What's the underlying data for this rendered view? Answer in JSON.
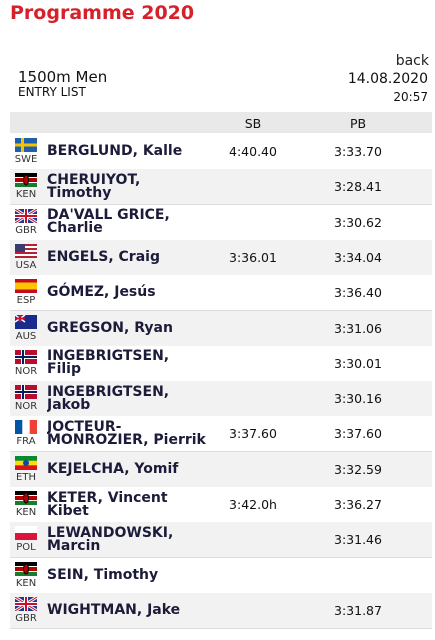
{
  "header": {
    "title": "Programme 2020",
    "back": "back",
    "event": "1500m Men",
    "subtitle": "ENTRY LIST",
    "date": "14.08.2020",
    "time": "20:57"
  },
  "table": {
    "columns": [
      "SB",
      "PB"
    ],
    "rows": [
      {
        "country": "SWE",
        "name": "BERGLUND, Kalle",
        "sb": "4:40.40",
        "pb": "3:33.70"
      },
      {
        "country": "KEN",
        "name": "CHERUIYOT, Timothy",
        "sb": null,
        "pb": "3:28.41"
      },
      {
        "country": "GBR",
        "name": "DA'VALL GRICE, Charlie",
        "sb": null,
        "pb": "3:30.62"
      },
      {
        "country": "USA",
        "name": "ENGELS, Craig",
        "sb": "3:36.01",
        "pb": "3:34.04"
      },
      {
        "country": "ESP",
        "name": "GÓMEZ, Jesús",
        "sb": null,
        "pb": "3:36.40"
      },
      {
        "country": "AUS",
        "name": "GREGSON, Ryan",
        "sb": null,
        "pb": "3:31.06"
      },
      {
        "country": "NOR",
        "name": "INGEBRIGTSEN, Filip",
        "sb": null,
        "pb": "3:30.01"
      },
      {
        "country": "NOR",
        "name": "INGEBRIGTSEN, Jakob",
        "sb": null,
        "pb": "3:30.16"
      },
      {
        "country": "FRA",
        "name": "JOCTEUR-MONROZIER, Pierrik",
        "sb": "3:37.60",
        "pb": "3:37.60"
      },
      {
        "country": "ETH",
        "name": "KEJELCHA, Yomif",
        "sb": null,
        "pb": "3:32.59"
      },
      {
        "country": "KEN",
        "name": "KETER, Vincent Kibet",
        "sb": "3:42.0h",
        "pb": "3:36.27"
      },
      {
        "country": "POL",
        "name": "LEWANDOWSKI, Marcin",
        "sb": null,
        "pb": "3:31.46"
      },
      {
        "country": "KEN",
        "name": "SEIN, Timothy",
        "sb": null,
        "pb": null
      },
      {
        "country": "GBR",
        "name": "WIGHTMAN, Jake",
        "sb": null,
        "pb": "3:31.87"
      }
    ]
  }
}
